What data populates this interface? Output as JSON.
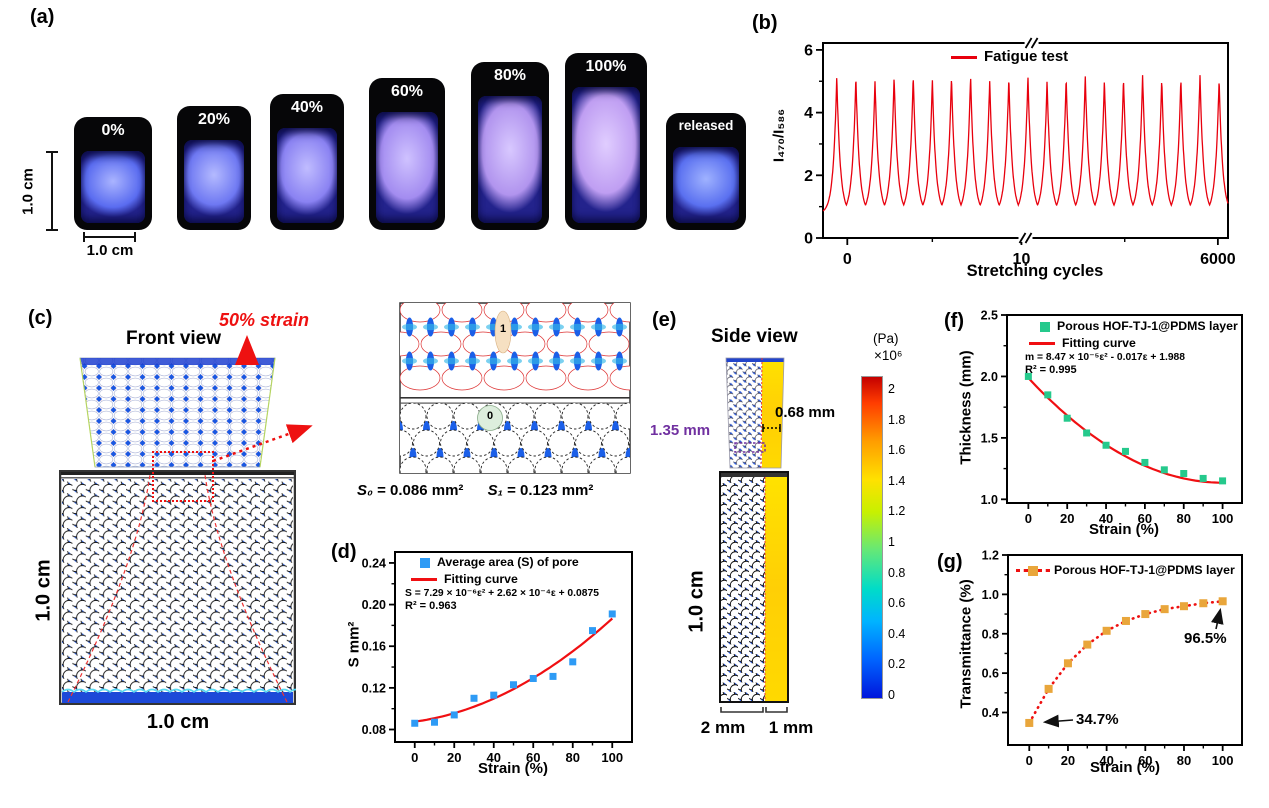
{
  "panels": {
    "a": "(a)",
    "b": "(b)",
    "c": "(c)",
    "d": "(d)",
    "e": "(e)",
    "f": "(f)",
    "g": "(g)"
  },
  "panel_a": {
    "samples": [
      {
        "label": "0%"
      },
      {
        "label": "20%"
      },
      {
        "label": "40%"
      },
      {
        "label": "60%"
      },
      {
        "label": "80%"
      },
      {
        "label": "100%"
      },
      {
        "label": "released"
      }
    ],
    "scale_vertical": "1.0 cm",
    "scale_horizontal": "1.0 cm"
  },
  "panel_c": {
    "title": "Front view",
    "strain_label": "50% strain",
    "side_label": "1.0 cm",
    "bottom_label": "1.0 cm",
    "pore0": "0",
    "pore1": "1",
    "s0_label": "S₀",
    "s0_value": "= 0.086 mm²",
    "s1_label": "S₁",
    "s1_value": "= 0.123 mm²"
  },
  "panel_e": {
    "title": "Side view",
    "stretched_width": "1.35 mm",
    "stretched_thickness": "0.68 mm",
    "height_label": "1.0 cm",
    "porous_width": "2 mm",
    "pdms_width": "1 mm",
    "colorbar": {
      "unit": "(Pa)",
      "scale": "×10⁶",
      "ticks": [
        "2",
        "1.8",
        "1.6",
        "1.4",
        "1.2",
        "1",
        "0.8",
        "0.6",
        "0.4",
        "0.2",
        "0"
      ]
    }
  },
  "colors": {
    "accent_red": "#ee1111",
    "fit_red": "#f00f12",
    "blue_marker": "#2e9bf5",
    "green_marker": "#25c98c",
    "orange_marker": "#e9a63b",
    "purple_label": "#7030a0"
  },
  "chart_data": [
    {
      "id": "b",
      "type": "line",
      "legend": [
        "Fatigue test"
      ],
      "xlabel": "Stretching cycles",
      "ylabel": "I₄₇₀/I₅₈₆",
      "ylim": [
        0,
        6.22
      ],
      "yticks": [
        0,
        2,
        4,
        6
      ],
      "xticks": [
        {
          "label": "0",
          "f": 0.06
        },
        {
          "label": "10",
          "f": 0.49
        },
        {
          "label": "6000",
          "f": 0.975
        }
      ],
      "axis_break": true,
      "cycles_shown": 21,
      "peak_value": 5.15,
      "valley_value": 0.78,
      "line_color": "#e8000d"
    },
    {
      "id": "d",
      "type": "scatter",
      "legend": [
        "Average area (S) of pore",
        "Fitting curve"
      ],
      "equation": "S = 7.29 × 10⁻⁶ε² + 2.62 × 10⁻⁴ε + 0.0875",
      "r2": "R² = 0.963",
      "xlabel": "Strain (%)",
      "ylabel": "S mm²",
      "x": [
        0,
        10,
        20,
        30,
        40,
        50,
        60,
        70,
        80,
        90,
        100
      ],
      "y": [
        0.086,
        0.087,
        0.094,
        0.11,
        0.113,
        0.123,
        0.129,
        0.131,
        0.145,
        0.175,
        0.191
      ],
      "fit_poly": [
        7.29e-06,
        0.000262,
        0.0875
      ],
      "xlim": [
        -10,
        110
      ],
      "ylim": [
        0.068,
        0.2505
      ],
      "xticks": [
        0,
        20,
        40,
        60,
        80,
        100
      ],
      "ytick_vals": [
        0.08,
        0.12,
        0.16,
        0.2,
        0.24
      ],
      "ytick_labels": [
        "0.08",
        "0.12",
        "0.16",
        "0.20",
        "0.24"
      ],
      "marker_color": "#2e9bf5",
      "line_color": "#f00f12"
    },
    {
      "id": "f",
      "type": "scatter",
      "legend": [
        "Porous HOF-TJ-1@PDMS layer",
        "Fitting curve"
      ],
      "equation": "m = 8.47 × 10⁻⁵ε² - 0.017ε + 1.988",
      "r2": "R² = 0.995",
      "xlabel": "Strain (%)",
      "ylabel": "Thickness (mm)",
      "x": [
        0,
        10,
        20,
        30,
        40,
        50,
        60,
        70,
        80,
        90,
        100
      ],
      "y": [
        2.0,
        1.85,
        1.66,
        1.54,
        1.44,
        1.39,
        1.3,
        1.24,
        1.21,
        1.17,
        1.15
      ],
      "fit_poly": [
        8.47e-05,
        -0.017,
        1.988
      ],
      "xlim": [
        -11,
        110
      ],
      "ylim": [
        0.97,
        2.5
      ],
      "xticks": [
        0,
        20,
        40,
        60,
        80,
        100
      ],
      "ytick_vals": [
        1.0,
        1.5,
        2.0,
        2.5
      ],
      "ytick_labels": [
        "1.0",
        "1.5",
        "2.0",
        "2.5"
      ],
      "marker_color": "#25c98c",
      "line_color": "#f00f12"
    },
    {
      "id": "g",
      "type": "scatter-line",
      "legend": [
        "Porous HOF-TJ-1@PDMS layer"
      ],
      "xlabel": "Strain (%)",
      "ylabel": "Transmittance (%)",
      "x": [
        0,
        10,
        20,
        30,
        40,
        50,
        60,
        70,
        80,
        90,
        100
      ],
      "y": [
        0.347,
        0.52,
        0.65,
        0.745,
        0.815,
        0.865,
        0.9,
        0.925,
        0.94,
        0.955,
        0.965
      ],
      "xlim": [
        -11,
        110
      ],
      "ylim": [
        0.235,
        1.2
      ],
      "xticks": [
        0,
        20,
        40,
        60,
        80,
        100
      ],
      "ytick_vals": [
        0.4,
        0.6,
        0.8,
        1.0,
        1.2
      ],
      "ytick_labels": [
        "0.4",
        "0.6",
        "0.8",
        "1.0",
        "1.2"
      ],
      "annotations": [
        {
          "text": "34.7%"
        },
        {
          "text": "96.5%"
        }
      ],
      "marker_color": "#e9a63b",
      "line_color": "#ee1111",
      "line_style": "dotted"
    }
  ]
}
